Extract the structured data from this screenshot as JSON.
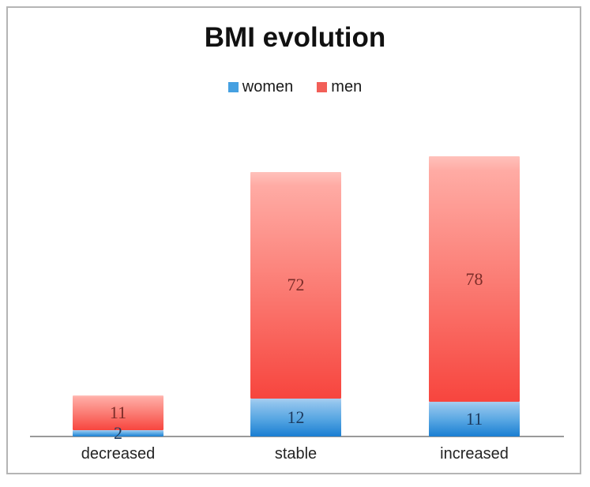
{
  "page": {
    "background": "#ffffff",
    "frame_border_color": "#b5b5b5",
    "axis_line_color": "#9a9a9a"
  },
  "chart_data": {
    "type": "bar",
    "stacked": true,
    "title": "BMI evolution",
    "xlabel": "",
    "ylabel": "",
    "categories": [
      "decreased",
      "stable",
      "increased"
    ],
    "series": [
      {
        "name": "women",
        "values": [
          2,
          12,
          11
        ],
        "swatch_color": "#45a0e1",
        "gradient_top": "#8fc3ed",
        "gradient_bottom": "#1a7ed2",
        "label_color": "#1d3a5e"
      },
      {
        "name": "men",
        "values": [
          11,
          72,
          78
        ],
        "swatch_color": "#f25f58",
        "gradient_top": "#ffaba4",
        "gradient_bottom": "#f7453e",
        "label_color": "#7b2d29"
      }
    ],
    "legend_position": "top",
    "legend_entries": [
      "women",
      "men"
    ],
    "grid": false,
    "ylim": [
      0,
      89
    ],
    "data_labels_shown": true
  }
}
